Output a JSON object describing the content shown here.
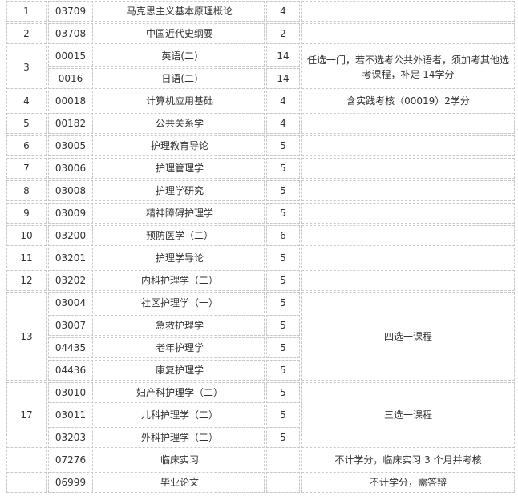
{
  "rows": [
    {
      "no": "1",
      "code": "03709",
      "name": "马克思主义基本原理概论",
      "credit": "4",
      "note": ""
    },
    {
      "no": "2",
      "code": "03708",
      "name": "中国近代史纲要",
      "credit": "2",
      "note": ""
    },
    {
      "no": "3",
      "code": "00015",
      "name": "英语(二)",
      "credit": "14",
      "note": "任选一门，若不选考公共外语者，须加考其他选考课程，补足 14学分"
    },
    {
      "code": "0016",
      "name": "日语(二)",
      "credit": "14"
    },
    {
      "no": "4",
      "code": "00018",
      "name": "计算机应用基础",
      "credit": "4",
      "note": "含实践考核（00019）2学分"
    },
    {
      "no": "5",
      "code": "00182",
      "name": "公共关系学",
      "credit": "4",
      "note": ""
    },
    {
      "no": "6",
      "code": "03005",
      "name": "护理教育导论",
      "credit": "5",
      "note": ""
    },
    {
      "no": "7",
      "code": "03006",
      "name": "护理管理学",
      "credit": "5",
      "note": ""
    },
    {
      "no": "8",
      "code": "03008",
      "name": "护理学研究",
      "credit": "5",
      "note": ""
    },
    {
      "no": "9",
      "code": "03009",
      "name": "精神障碍护理学",
      "credit": "5",
      "note": ""
    },
    {
      "no": "10",
      "code": "03200",
      "name": "预防医学（二）",
      "credit": "6",
      "note": ""
    },
    {
      "no": "11",
      "code": "03201",
      "name": "护理学导论",
      "credit": "5",
      "note": ""
    },
    {
      "no": "12",
      "code": "03202",
      "name": "内科护理学（二）",
      "credit": "5",
      "note": ""
    },
    {
      "no": "13",
      "code": "03004",
      "name": "社区护理学（一）",
      "credit": "5",
      "note": "四选一课程"
    },
    {
      "code": "03007",
      "name": "急救护理学",
      "credit": "5"
    },
    {
      "code": "04435",
      "name": "老年护理学",
      "credit": "5"
    },
    {
      "code": "04436",
      "name": "康复护理学",
      "credit": "5"
    },
    {
      "no": "17",
      "code": "03010",
      "name": "妇产科护理学（二）",
      "credit": "5",
      "note": "三选一课程"
    },
    {
      "code": "03011",
      "name": "儿科护理学（二）",
      "credit": "5"
    },
    {
      "code": "03203",
      "name": "外科护理学（二）",
      "credit": "5"
    },
    {
      "no": "",
      "code": "07276",
      "name": "临床实习",
      "credit": "",
      "note": "不计学分，临床实习 3 个月并考核"
    },
    {
      "no": "",
      "code": "06999",
      "name": "毕业论文",
      "credit": "",
      "note": "不计学分，需答辩"
    }
  ]
}
